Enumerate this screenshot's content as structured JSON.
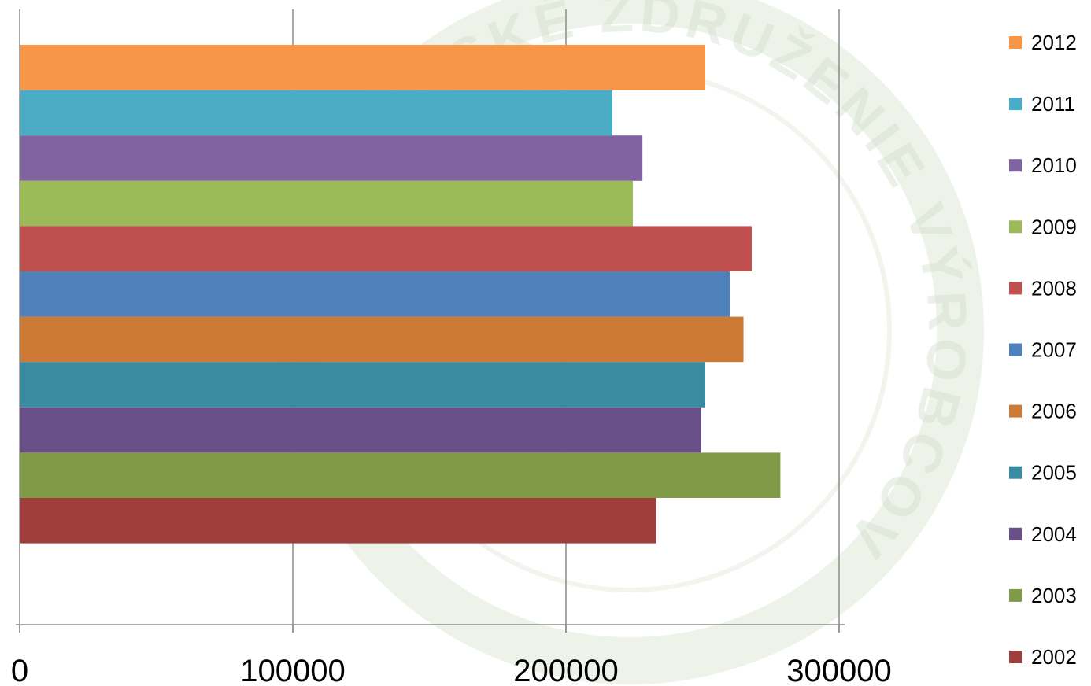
{
  "watermark": {
    "text": "SLOVENSKÉ ZDRUŽENIE VÝROBCOV",
    "color": "#c8d9c0"
  },
  "chart_data": {
    "type": "bar",
    "orientation": "horizontal",
    "title": "",
    "xlabel": "",
    "ylabel": "",
    "xlim": [
      0,
      300000
    ],
    "x_ticks": [
      0,
      100000,
      200000,
      300000
    ],
    "x_tick_labels": [
      "0",
      "100000",
      "200000",
      "300000"
    ],
    "grid": true,
    "legend_position": "right",
    "series": [
      {
        "name": "2012",
        "value": 251000,
        "color": "#F79646"
      },
      {
        "name": "2011",
        "value": 217000,
        "color": "#4BACC6"
      },
      {
        "name": "2010",
        "value": 228000,
        "color": "#8064A2"
      },
      {
        "name": "2009",
        "value": 224500,
        "color": "#9BBB59"
      },
      {
        "name": "2008",
        "value": 268000,
        "color": "#C0504D"
      },
      {
        "name": "2007",
        "value": 260000,
        "color": "#4F81BD"
      },
      {
        "name": "2006",
        "value": 265000,
        "color": "#CC7A36"
      },
      {
        "name": "2005",
        "value": 251000,
        "color": "#3A8BA1"
      },
      {
        "name": "2004",
        "value": 249500,
        "color": "#684F88"
      },
      {
        "name": "2003",
        "value": 278500,
        "color": "#7F9B48"
      },
      {
        "name": "2002",
        "value": 233000,
        "color": "#9E3F3C"
      }
    ]
  }
}
